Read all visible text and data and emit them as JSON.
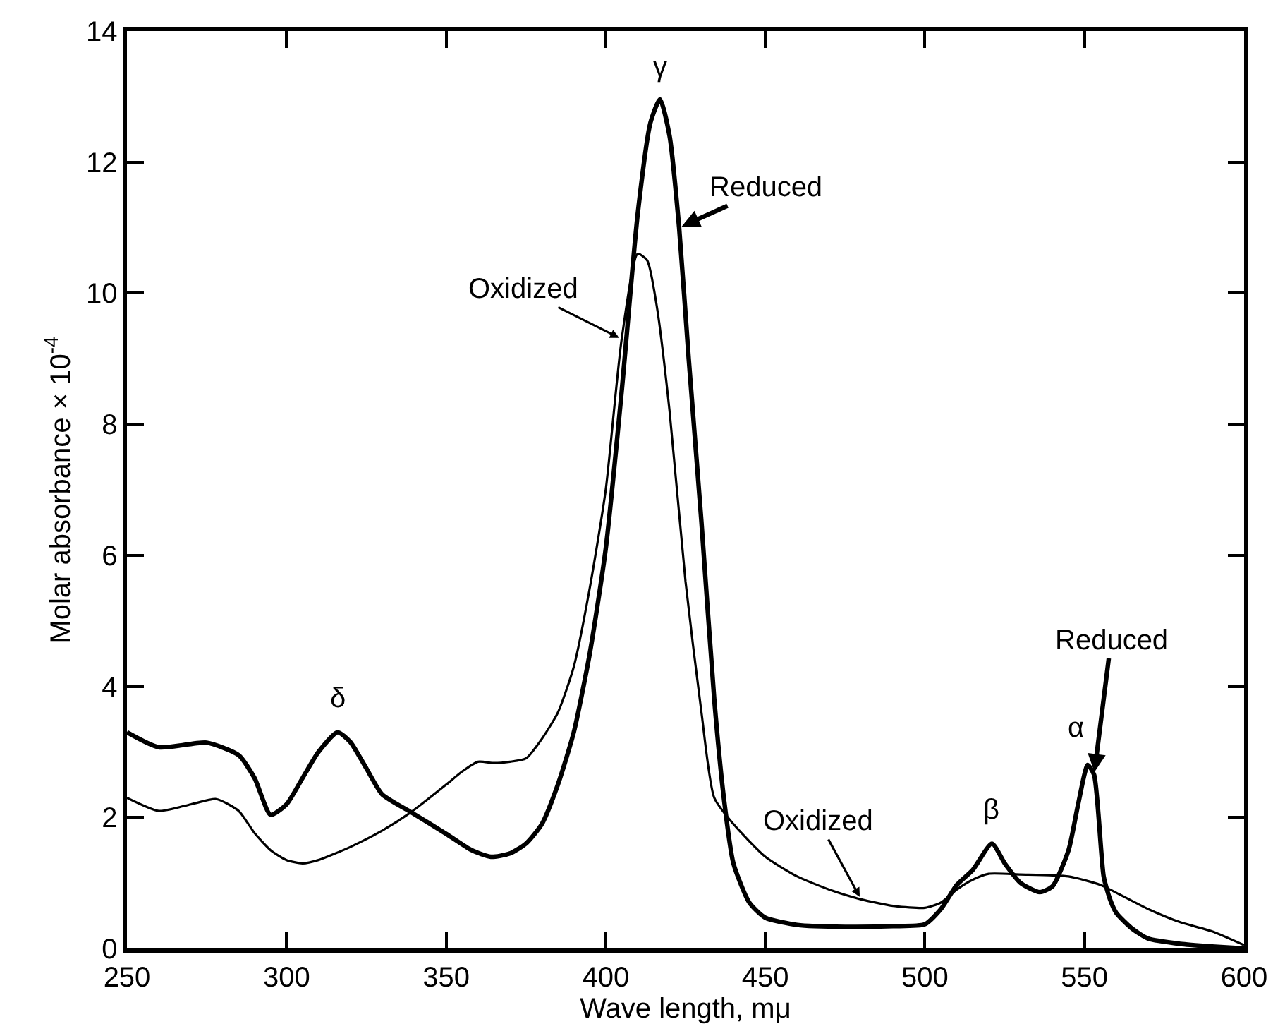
{
  "chart_data": {
    "type": "line",
    "xlabel": "Wave length, mμ",
    "ylabel": "Molar absorbance × 10$^{-4}$",
    "xlim": [
      250,
      600
    ],
    "ylim": [
      0,
      14
    ],
    "xticks": [
      250,
      300,
      350,
      400,
      450,
      500,
      550,
      600
    ],
    "yticks": [
      0,
      2,
      4,
      6,
      8,
      10,
      12,
      14
    ],
    "legend": false,
    "marker": "none",
    "line_style": "solid",
    "series": [
      {
        "name": "Reduced",
        "color": "#000000",
        "x": [
          250,
          260,
          275,
          285,
          290,
          295,
          300,
          305,
          310,
          316,
          320,
          325,
          330,
          339,
          350,
          358,
          364,
          370,
          375,
          380,
          385,
          390,
          395,
          400,
          405,
          410,
          414,
          417,
          420,
          423,
          426,
          430,
          434,
          437,
          440,
          445,
          450,
          460,
          475,
          490,
          500,
          505,
          510,
          515,
          521,
          525,
          530,
          536,
          540,
          545,
          548,
          551,
          553,
          556,
          558,
          560,
          565,
          570,
          580,
          590,
          600
        ],
        "values": [
          3.3,
          3.07,
          3.14,
          2.95,
          2.6,
          2.04,
          2.2,
          2.6,
          3.0,
          3.3,
          3.15,
          2.75,
          2.35,
          2.08,
          1.75,
          1.5,
          1.4,
          1.45,
          1.6,
          1.9,
          2.5,
          3.3,
          4.5,
          6.1,
          8.5,
          11.2,
          12.6,
          12.96,
          12.4,
          11.0,
          9.0,
          6.5,
          3.8,
          2.3,
          1.3,
          0.7,
          0.47,
          0.36,
          0.33,
          0.34,
          0.37,
          0.6,
          0.97,
          1.2,
          1.6,
          1.3,
          1.0,
          0.86,
          0.95,
          1.5,
          2.2,
          2.8,
          2.65,
          1.1,
          0.75,
          0.54,
          0.3,
          0.15,
          0.07,
          0.03,
          0
        ]
      },
      {
        "name": "Oxidized",
        "color": "#000000",
        "x": [
          250,
          260,
          270,
          278,
          285,
          290,
          295,
          300,
          305,
          310,
          320,
          330,
          339,
          350,
          355,
          360,
          365,
          370,
          375,
          380,
          385,
          390,
          395,
          400,
          405,
          410,
          413,
          416,
          420,
          425,
          430,
          434,
          440,
          450,
          460,
          470,
          480,
          490,
          500,
          505,
          510,
          515,
          520,
          530,
          545,
          555,
          560,
          570,
          580,
          590,
          600
        ],
        "values": [
          2.3,
          2.1,
          2.2,
          2.28,
          2.1,
          1.76,
          1.5,
          1.35,
          1.3,
          1.35,
          1.55,
          1.8,
          2.08,
          2.5,
          2.7,
          2.85,
          2.83,
          2.85,
          2.9,
          3.2,
          3.6,
          4.3,
          5.5,
          7.0,
          9.3,
          10.6,
          10.5,
          9.8,
          8.2,
          5.6,
          3.6,
          2.3,
          1.9,
          1.4,
          1.1,
          0.9,
          0.75,
          0.65,
          0.62,
          0.7,
          0.9,
          1.05,
          1.14,
          1.13,
          1.1,
          0.97,
          0.85,
          0.6,
          0.4,
          0.26,
          0.05
        ]
      }
    ],
    "annotations": [
      {
        "text": "γ",
        "x": 417,
        "y": 12.96
      },
      {
        "text": "δ",
        "x": 316,
        "y": 3.3
      },
      {
        "text": "β",
        "x": 521,
        "y": 1.6
      },
      {
        "text": "α",
        "x": 551,
        "y": 2.8
      }
    ]
  }
}
